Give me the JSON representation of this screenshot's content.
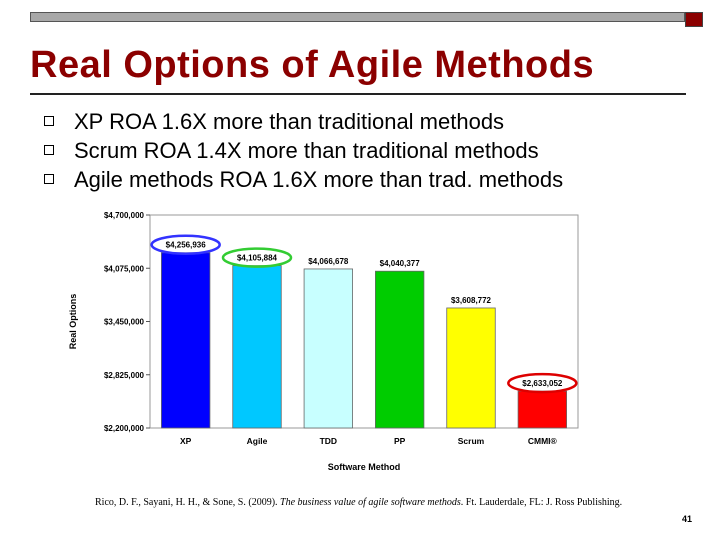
{
  "slide": {
    "title": "Real Options of Agile Methods",
    "bullets": [
      "XP ROA 1.6X more than traditional methods",
      "Scrum ROA 1.4X more than traditional methods",
      "Agile methods ROA 1.6X more than trad. methods"
    ],
    "citation_pre": "Rico, D. F., Sayani, H. H., & Sone, S. (2009). ",
    "citation_title": "The business value of agile software methods",
    "citation_post": ". Ft. Lauderdale, FL: J. Ross Publishing.",
    "page_number": "41",
    "accent_color": "#8b0000"
  },
  "chart_data": {
    "type": "bar",
    "xlabel": "Software Method",
    "ylabel": "Real Options",
    "ylim": [
      2200000,
      4700000
    ],
    "yticks": [
      "$2,200,000",
      "$2,825,000",
      "$3,450,000",
      "$4,075,000",
      "$4,700,000"
    ],
    "ytick_values": [
      2200000,
      2825000,
      3450000,
      4075000,
      4700000
    ],
    "categories": [
      "XP",
      "Agile",
      "TDD",
      "PP",
      "Scrum",
      "CMMI®"
    ],
    "values": [
      4256936,
      4105884,
      4066678,
      4040377,
      3608772,
      2633052
    ],
    "data_labels": [
      "$4,256,936",
      "$4,105,884",
      "$4,066,678",
      "$4,040,377",
      "$3,608,772",
      "$2,633,052"
    ],
    "colors": [
      "#0000ff",
      "#00c8ff",
      "#c8ffff",
      "#00cc00",
      "#ffff00",
      "#ff0000"
    ],
    "highlight_ellipses": [
      {
        "category": "XP",
        "color": "#3333ff"
      },
      {
        "category": "Agile",
        "color": "#33cc33"
      },
      {
        "category": "CMMI®",
        "color": "#dd0000"
      }
    ]
  }
}
